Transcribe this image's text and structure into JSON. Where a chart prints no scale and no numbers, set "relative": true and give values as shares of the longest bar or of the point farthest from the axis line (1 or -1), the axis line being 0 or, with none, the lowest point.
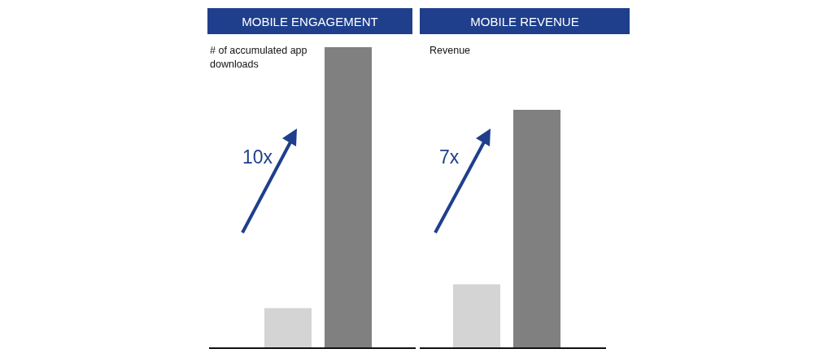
{
  "chart_data": [
    {
      "type": "bar",
      "title": "MOBILE ENGAGEMENT",
      "ylabel": "# of accumulated app downloads",
      "categories": [
        null,
        null
      ],
      "values": [
        0.133,
        1
      ],
      "colors": [
        "#d4d4d4",
        "#808080"
      ],
      "relative": true,
      "annotations": [
        "10x"
      ]
    },
    {
      "type": "bar",
      "title": "MOBILE REVENUE",
      "ylabel": "Revenue",
      "categories": [
        null,
        null
      ],
      "values": [
        0.268,
        1
      ],
      "colors": [
        "#d4d4d4",
        "#808080"
      ],
      "relative": true,
      "annotations": [
        "7x"
      ]
    }
  ]
}
